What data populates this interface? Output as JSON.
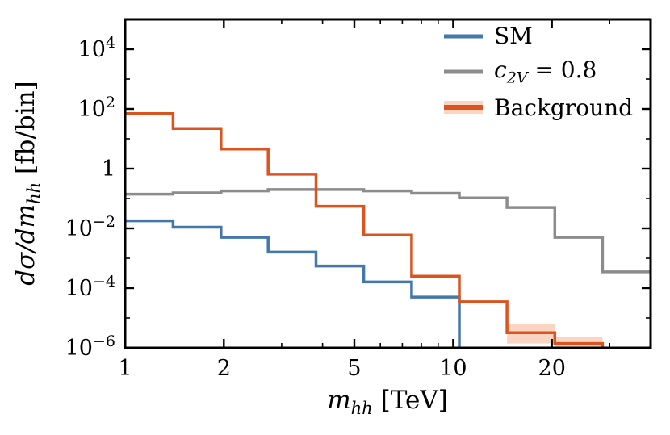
{
  "figure": {
    "background": "#ffffff"
  },
  "chart_data": {
    "type": "step-histogram",
    "xscale": "log",
    "yscale": "log",
    "xlim": [
      1,
      40
    ],
    "ylim": [
      1e-06,
      100000.0
    ],
    "xlabel": {
      "math": "m",
      "sub": "hh",
      "unit": " [TeV]"
    },
    "ylabel": {
      "math": "dσ/dm",
      "sub": "hh",
      "unit": " [fb/bin]"
    },
    "xticks": [
      {
        "v": 1,
        "label": "1"
      },
      {
        "v": 2,
        "label": "2"
      },
      {
        "v": 5,
        "label": "5"
      },
      {
        "v": 10,
        "label": "10"
      },
      {
        "v": 20,
        "label": "20"
      }
    ],
    "xminor": [
      3,
      4,
      6,
      7,
      8,
      9,
      30
    ],
    "yticks": [
      {
        "v": 10000.0,
        "base": "10",
        "exp": "4"
      },
      {
        "v": 100.0,
        "base": "10",
        "exp": "2"
      },
      {
        "v": 1,
        "base": "1",
        "exp": ""
      },
      {
        "v": 0.01,
        "base": "10",
        "exp": "−2"
      },
      {
        "v": 0.0001,
        "base": "10",
        "exp": "−4"
      },
      {
        "v": 1e-06,
        "base": "10",
        "exp": "−6"
      }
    ],
    "yminor": [
      1000.0,
      10.0,
      0.1,
      0.001,
      1e-05
    ],
    "bin_edges": [
      1,
      1.4,
      1.96,
      2.73,
      3.82,
      5.34,
      7.47,
      10.44,
      14.6,
      20.41,
      28.54,
      39.9
    ],
    "series": [
      {
        "name": "SM",
        "color": "#4477aa",
        "z": 2,
        "values": [
          0.018,
          0.011,
          0.005,
          0.0016,
          0.00055,
          0.00016,
          5e-05,
          null,
          null,
          null,
          null
        ]
      },
      {
        "name": "c2V = 0.8",
        "color": "#8c8c8c",
        "z": 1,
        "values": [
          0.14,
          0.155,
          0.18,
          0.2,
          0.2,
          0.18,
          0.15,
          0.105,
          0.05,
          0.005,
          0.00035
        ]
      },
      {
        "name": "Background",
        "color": "#d9541f",
        "z": 3,
        "values": [
          70,
          22,
          4.5,
          0.65,
          0.055,
          0.006,
          0.00025,
          3.5e-05,
          3.2e-06,
          1.4e-06,
          null
        ],
        "band_lo": [
          null,
          null,
          null,
          null,
          null,
          null,
          null,
          null,
          1.4e-06,
          1e-06,
          null
        ],
        "band_hi": [
          null,
          null,
          null,
          null,
          null,
          null,
          null,
          null,
          6.5e-06,
          2.3e-06,
          null
        ]
      }
    ],
    "band_color": "#f6b28e",
    "band_opacity": 0.55,
    "frame_color": "#000000",
    "legend": {
      "position": "upper-right",
      "entries": [
        {
          "series": "SM",
          "color": "#4477aa",
          "band": false,
          "parts": [
            {
              "t": "SM"
            }
          ]
        },
        {
          "series": "c2V = 0.8",
          "color": "#8c8c8c",
          "band": false,
          "parts": [
            {
              "t": "c",
              "it": true
            },
            {
              "t": "2V",
              "it": true,
              "sub": true
            },
            {
              "t": " = 0.8"
            }
          ]
        },
        {
          "series": "Background",
          "color": "#d9541f",
          "band": true,
          "parts": [
            {
              "t": "Background"
            }
          ]
        }
      ]
    }
  }
}
